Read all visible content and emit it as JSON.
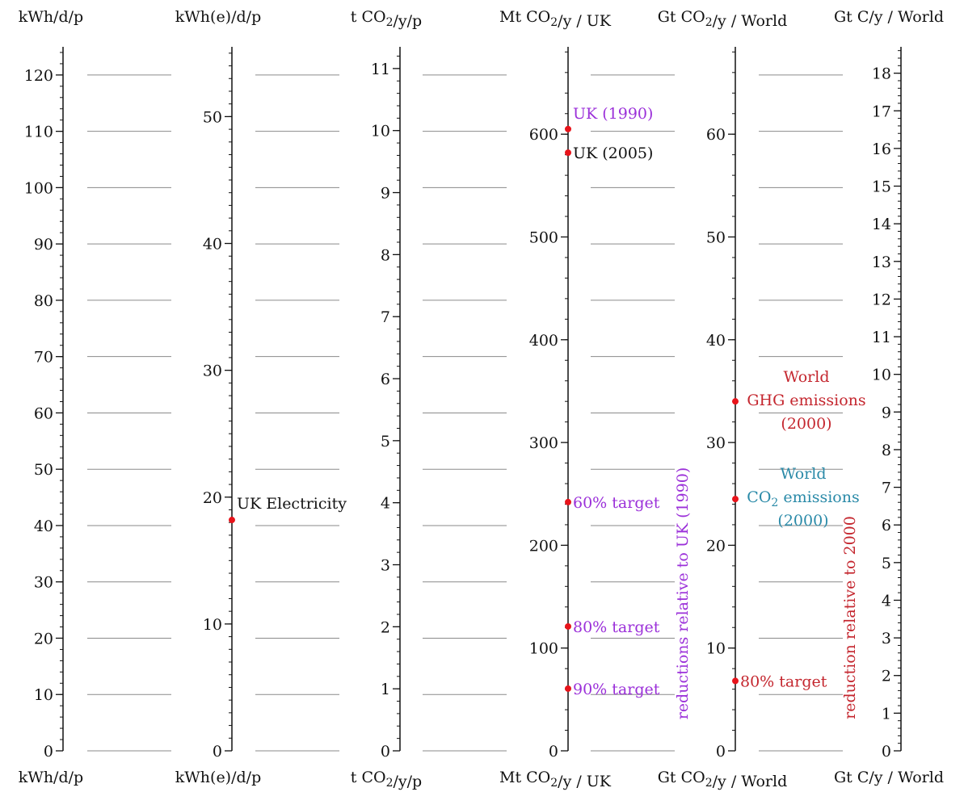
{
  "chart_data": {
    "type": "scale-comparison",
    "axes": [
      {
        "unit": "kWh/d/p",
        "ticks": [
          0,
          10,
          20,
          30,
          40,
          50,
          60,
          70,
          80,
          90,
          100,
          110,
          120
        ],
        "minor_step": 2,
        "range": [
          0,
          125
        ]
      },
      {
        "unit": "kWh(e)/d/p",
        "ticks": [
          0,
          10,
          20,
          30,
          40,
          50
        ],
        "minor_step": 1,
        "range": [
          0,
          55.5
        ]
      },
      {
        "unit": "t CO2/y/p",
        "ticks": [
          0,
          1,
          2,
          3,
          4,
          5,
          6,
          7,
          8,
          9,
          10,
          11
        ],
        "minor_step": 0.2,
        "range": [
          0,
          11.35
        ]
      },
      {
        "unit": "Mt CO2/y / UK",
        "ticks": [
          0,
          100,
          200,
          300,
          400,
          500,
          600
        ],
        "minor_step": 20,
        "range": [
          0,
          685
        ]
      },
      {
        "unit": "Gt CO2/y / World",
        "ticks": [
          0,
          10,
          20,
          30,
          40,
          50,
          60
        ],
        "minor_step": 2,
        "range": [
          0,
          68.5
        ]
      },
      {
        "unit": "Gt C/y / World",
        "ticks": [
          0,
          1,
          2,
          3,
          4,
          5,
          6,
          7,
          8,
          9,
          10,
          11,
          12,
          13,
          14,
          15,
          16,
          17,
          18
        ],
        "minor_step": 0.2,
        "range": [
          0,
          18.7
        ]
      }
    ],
    "points": [
      {
        "axis": 1,
        "value": 18.2,
        "label": "UK Electricity",
        "color": "#111111"
      },
      {
        "axis": 3,
        "value": 605,
        "label": "UK (1990)",
        "color": "#9b30d9"
      },
      {
        "axis": 3,
        "value": 582,
        "label": "UK (2005)",
        "color": "#111111"
      },
      {
        "axis": 3,
        "value": 242,
        "label": "60% target",
        "color": "#9b30d9"
      },
      {
        "axis": 3,
        "value": 121,
        "label": "80% target",
        "color": "#9b30d9"
      },
      {
        "axis": 3,
        "value": 60.5,
        "label": "90% target",
        "color": "#9b30d9"
      },
      {
        "axis": 4,
        "value": 34,
        "label": "World GHG emissions (2000)",
        "color": "#c4262e"
      },
      {
        "axis": 4,
        "value": 24.5,
        "label": "World CO2 emissions (2000)",
        "color": "#2a8aa8"
      },
      {
        "axis": 4,
        "value": 6.8,
        "label": "80% target",
        "color": "#c4262e"
      }
    ],
    "gridlines_kwh": [
      0,
      10,
      20,
      30,
      40,
      50,
      60,
      70,
      80,
      90,
      100,
      110,
      120
    ],
    "side_labels": [
      {
        "text": "reductions relative to UK (1990)",
        "color": "#9b30d9"
      },
      {
        "text": "reduction relative to 2000",
        "color": "#c4262e"
      }
    ]
  },
  "labels": {
    "unit_top": [
      "kWh/d/p",
      "kWh(e)/d/p",
      "t CO2/y/p",
      "Mt CO2/y / UK",
      "Gt CO2/y / World",
      "Gt C/y / World"
    ],
    "unit_bottom": [
      "kWh/d/p",
      "kWh(e)/d/p",
      "t CO2/y/p",
      "Mt CO2/y / UK",
      "Gt CO2/y / World",
      "Gt C/y / World"
    ]
  },
  "colors": {
    "point": "#e8141b",
    "gridline": "#8a8a8a",
    "axis": "#111111"
  }
}
